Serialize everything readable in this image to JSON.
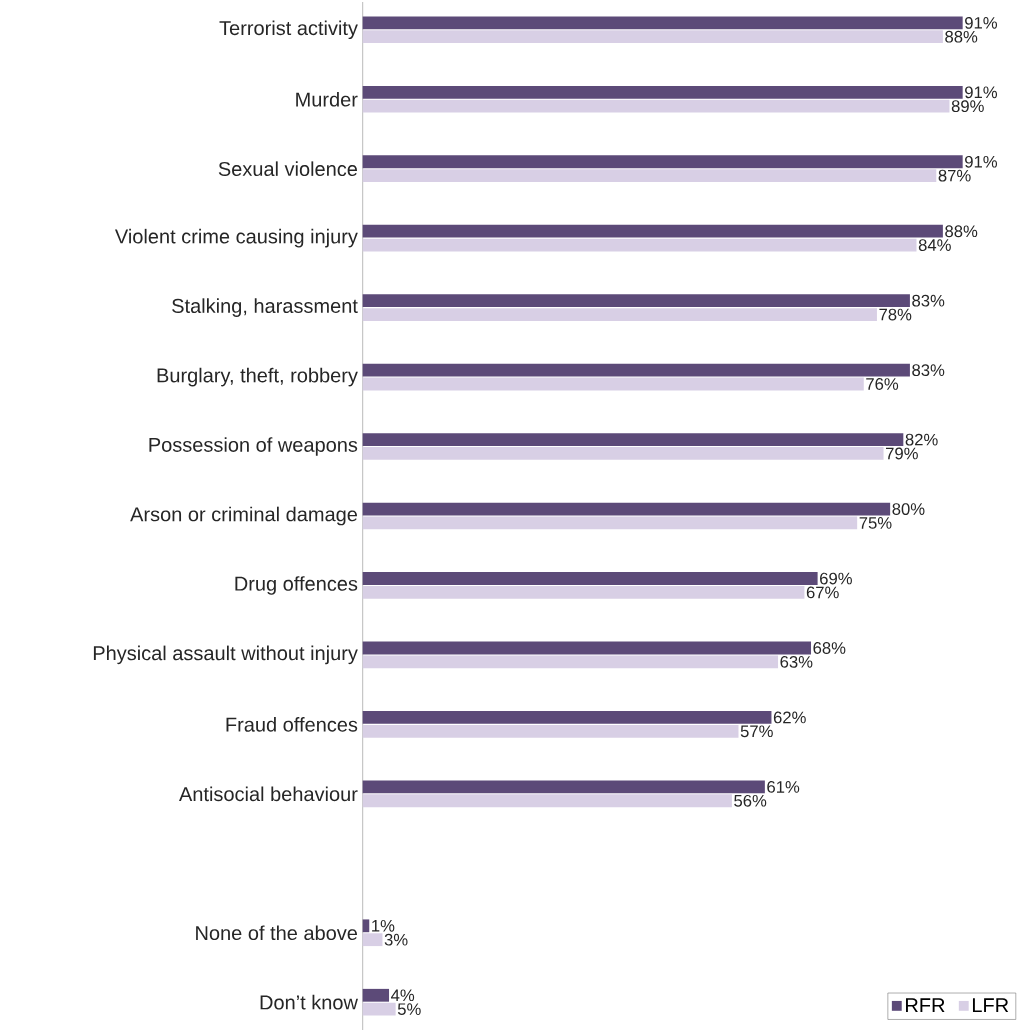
{
  "chart_data": {
    "type": "bar",
    "orientation": "horizontal",
    "categories": [
      "Terrorist activity",
      "Murder",
      "Sexual violence",
      "Violent crime causing injury",
      "Stalking, harassment",
      "Burglary, theft, robbery",
      "Possession of weapons",
      "Arson or criminal damage",
      "Drug offences",
      "Physical assault without injury",
      "Fraud offences",
      "Antisocial behaviour",
      null,
      "None of the above",
      "Don’t know"
    ],
    "series": [
      {
        "name": "RFR",
        "color": "#5c4a78",
        "values": [
          91,
          91,
          91,
          88,
          83,
          83,
          82,
          80,
          69,
          68,
          62,
          61,
          null,
          1,
          4
        ],
        "value_labels": [
          "91%",
          "91%",
          "91%",
          "88%",
          "83%",
          "83%",
          "82%",
          "80%",
          "69%",
          "68%",
          "62%",
          "61%",
          null,
          "1%",
          "4%"
        ]
      },
      {
        "name": "LFR",
        "color": "#d8cfe5",
        "values": [
          88,
          89,
          87,
          84,
          78,
          76,
          79,
          75,
          67,
          63,
          57,
          56,
          null,
          3,
          5
        ],
        "value_labels": [
          "88%",
          "89%",
          "87%",
          "84%",
          "78%",
          "76%",
          "79%",
          "75%",
          "67%",
          "63%",
          "57%",
          "56%",
          null,
          "3%",
          "5%"
        ]
      }
    ],
    "legend": "bottom right"
  }
}
